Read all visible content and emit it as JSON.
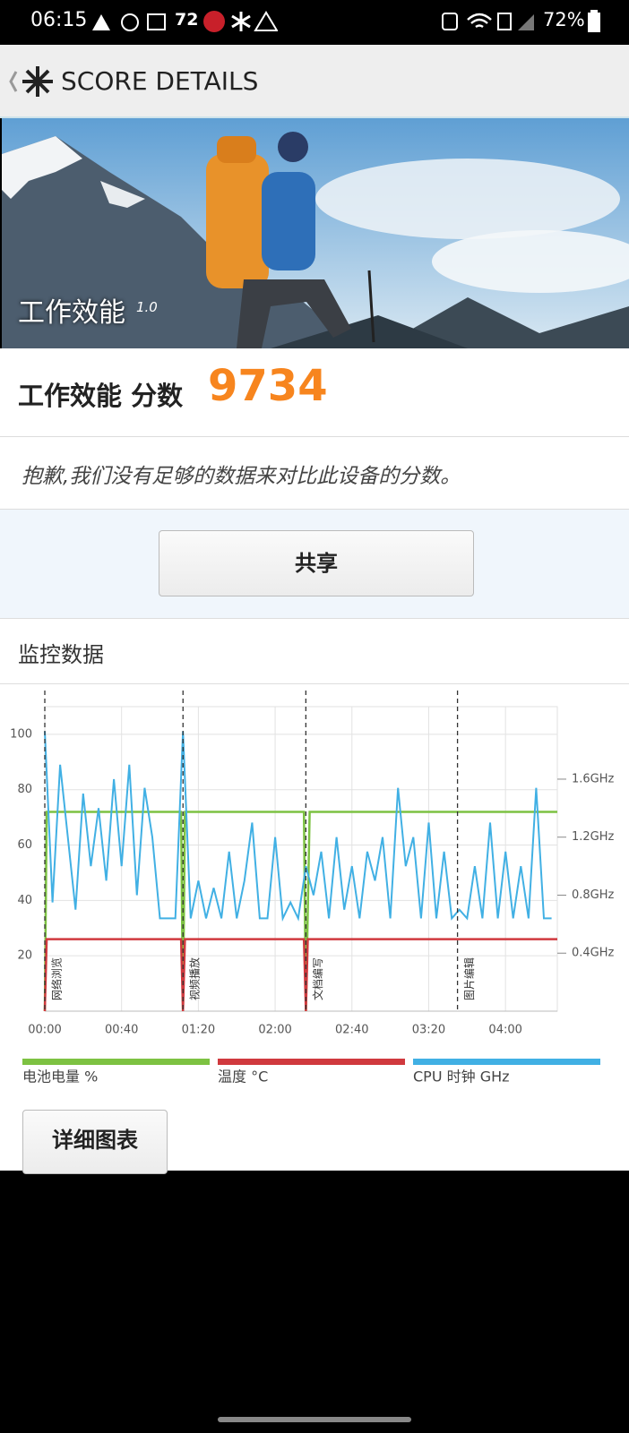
{
  "status_bar": {
    "time": "06:15",
    "notification_count": "72",
    "battery": "72%"
  },
  "header": {
    "title": "SCORE DETAILS"
  },
  "banner": {
    "title": "工作效能",
    "version": "1.0"
  },
  "score": {
    "label": "工作效能 分数",
    "value": "9734"
  },
  "note": "抱歉,我们没有足够的数据来对比此设备的分数。",
  "share_button": "共享",
  "monitoring": {
    "title": "监控数据",
    "chart_data": {
      "type": "line",
      "xlim": [
        0,
        267
      ],
      "xticks": [
        {
          "value": 0,
          "label": "00:00"
        },
        {
          "value": 40,
          "label": "00:40"
        },
        {
          "value": 80,
          "label": "01:20"
        },
        {
          "value": 120,
          "label": "02:00"
        },
        {
          "value": 160,
          "label": "02:40"
        },
        {
          "value": 200,
          "label": "03:20"
        },
        {
          "value": 240,
          "label": "04:00"
        }
      ],
      "ylim": [
        0,
        110
      ],
      "yticks": [
        20,
        40,
        60,
        80,
        100
      ],
      "y2lim": [
        0,
        2.1
      ],
      "y2ticks": [
        {
          "value": 0.4,
          "label": "0.4GHz"
        },
        {
          "value": 0.8,
          "label": "0.8GHz"
        },
        {
          "value": 1.2,
          "label": "1.2GHz"
        },
        {
          "value": 1.6,
          "label": "1.6GHz"
        }
      ],
      "grid": true,
      "annotations": [
        {
          "x": 0,
          "label": "网络浏览"
        },
        {
          "x": 72,
          "label": "视频播放"
        },
        {
          "x": 136,
          "label": "文档编写"
        },
        {
          "x": 215,
          "label": "图片编辑"
        }
      ],
      "series": [
        {
          "name": "电池电量 %",
          "color": "#7dc242",
          "x": [
            0,
            1,
            71,
            72,
            73,
            135,
            136,
            138,
            267
          ],
          "values": [
            0,
            72,
            72,
            0,
            72,
            72,
            0,
            72,
            72
          ]
        },
        {
          "name": "温度 °C",
          "color": "#d0393e",
          "x": [
            0,
            1,
            71,
            72,
            73,
            135,
            136,
            137,
            267
          ],
          "values": [
            0,
            26,
            26,
            0,
            26,
            26,
            0,
            26,
            26
          ]
        },
        {
          "name": "CPU 时钟 GHz",
          "color": "#41b0e4",
          "axis": "y2",
          "x": [
            0,
            4,
            8,
            12,
            16,
            20,
            24,
            28,
            32,
            36,
            40,
            44,
            48,
            52,
            56,
            60,
            64,
            68,
            72,
            76,
            80,
            84,
            88,
            92,
            96,
            100,
            104,
            108,
            112,
            116,
            120,
            124,
            128,
            132,
            136,
            140,
            144,
            148,
            152,
            156,
            160,
            164,
            168,
            172,
            176,
            180,
            184,
            188,
            192,
            196,
            200,
            204,
            208,
            212,
            216,
            220,
            224,
            228,
            232,
            236,
            240,
            244,
            248,
            252,
            256,
            260,
            264
          ],
          "values": [
            1.93,
            0.75,
            1.7,
            1.2,
            0.7,
            1.5,
            1.0,
            1.4,
            0.9,
            1.6,
            1.0,
            1.7,
            0.8,
            1.54,
            1.2,
            0.64,
            0.64,
            0.64,
            1.93,
            0.64,
            0.9,
            0.64,
            0.85,
            0.64,
            1.1,
            0.64,
            0.9,
            1.3,
            0.64,
            0.64,
            1.2,
            0.64,
            0.75,
            0.64,
            1.0,
            0.8,
            1.1,
            0.64,
            1.2,
            0.7,
            1.0,
            0.64,
            1.1,
            0.9,
            1.2,
            0.64,
            1.54,
            1.0,
            1.2,
            0.64,
            1.3,
            0.64,
            1.1,
            0.64,
            0.7,
            0.64,
            1.0,
            0.64,
            1.3,
            0.64,
            1.1,
            0.64,
            1.0,
            0.64,
            1.54,
            0.64,
            0.64
          ]
        }
      ]
    }
  },
  "details_button": "详细图表"
}
